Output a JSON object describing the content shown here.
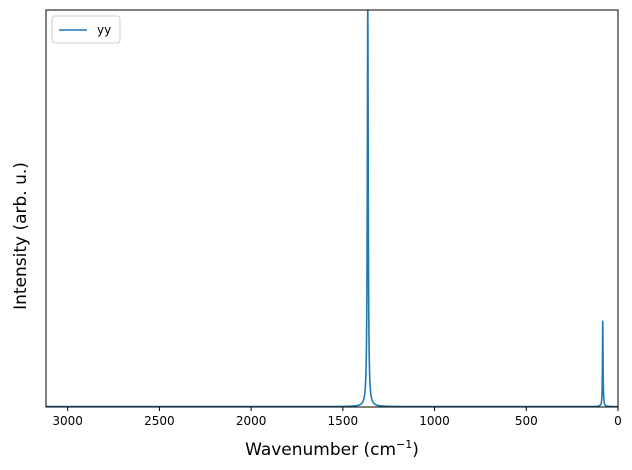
{
  "chart_data": {
    "type": "line",
    "xlabel": "Wavenumber (cm",
    "xlabel_sup": "−1",
    "xlabel_suffix": ")",
    "ylabel": "Intensity (arb. u.)",
    "xlim": [
      3118,
      0
    ],
    "ylim": [
      0,
      1.0
    ],
    "x_inverted": true,
    "y_ticks_visible": false,
    "grid": false,
    "legend": {
      "placement": "top-left",
      "entries": [
        "yy"
      ]
    },
    "xticks": [
      {
        "value": 3000,
        "label": "3000"
      },
      {
        "value": 2500,
        "label": "2500"
      },
      {
        "value": 2000,
        "label": "2000"
      },
      {
        "value": 1500,
        "label": "1500"
      },
      {
        "value": 1000,
        "label": "1000"
      },
      {
        "value": 500,
        "label": "500"
      },
      {
        "value": 0,
        "label": "0"
      }
    ],
    "series": [
      {
        "name": "yy",
        "color": "#1f77b4",
        "peaks": [
          {
            "center": 1364,
            "height": 1.02,
            "hwhm": 3
          },
          {
            "center": 83,
            "height": 0.215,
            "hwhm": 1.8
          }
        ],
        "baseline": 0.001
      }
    ]
  }
}
